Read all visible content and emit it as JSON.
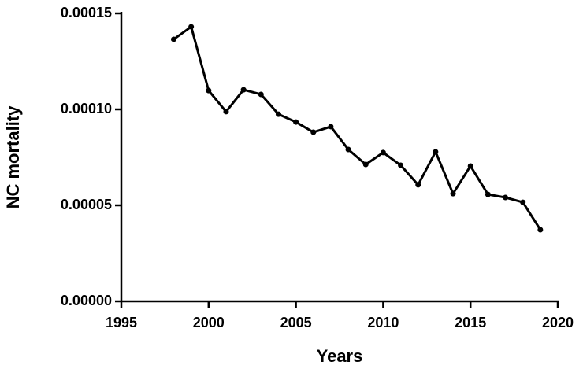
{
  "chart_data": {
    "type": "line",
    "x_label": "Years",
    "y_label": "NC mortality",
    "x": [
      1998,
      1999,
      2000,
      2001,
      2002,
      2003,
      2004,
      2005,
      2006,
      2007,
      2008,
      2009,
      2010,
      2011,
      2012,
      2013,
      2014,
      2015,
      2016,
      2017,
      2018,
      2019
    ],
    "series": [
      {
        "color": "#000000",
        "values": [
          0.0001365,
          0.000143,
          0.0001098,
          9.88e-05,
          0.0001102,
          0.0001078,
          9.75e-05,
          9.34e-05,
          8.81e-05,
          9.1e-05,
          7.91e-05,
          7.13e-05,
          7.75e-05,
          7.09e-05,
          6.07e-05,
          7.79e-05,
          5.61e-05,
          7.05e-05,
          5.57e-05,
          5.41e-05,
          5.16e-05,
          3.73e-05
        ]
      }
    ],
    "xlim": [
      1995,
      2020
    ],
    "xticks": [
      1995,
      2000,
      2005,
      2010,
      2015,
      2020
    ],
    "ylim": [
      0,
      0.00015
    ],
    "yticks": [
      {
        "value": 0,
        "label": "0.00000"
      },
      {
        "value": 5e-05,
        "label": "0.00005"
      },
      {
        "value": 0.0001,
        "label": "0.00010"
      },
      {
        "value": 0.00015,
        "label": "0.00015"
      }
    ],
    "grid": false
  }
}
